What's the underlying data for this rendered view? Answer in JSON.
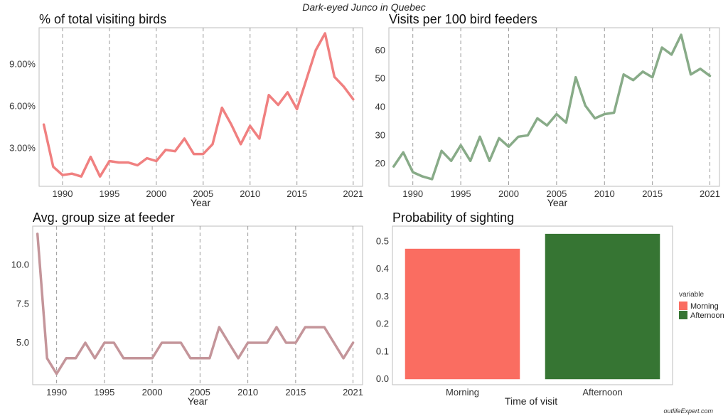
{
  "figure": {
    "title": "Dark-eyed Junco in Quebec",
    "watermark": "outlifeExpert.com"
  },
  "chart_data": [
    {
      "type": "line",
      "title": "% of total visiting birds",
      "xlabel": "Year",
      "ylabel": "",
      "color": "#f08080",
      "xlim": [
        1987.5,
        2022
      ],
      "ylim": [
        0.3,
        11.6
      ],
      "x_ticks": [
        1990,
        1995,
        2000,
        2005,
        2010,
        2015,
        2021
      ],
      "y_ticks": [
        3,
        6,
        9
      ],
      "y_tick_labels": [
        "3.00%",
        "6.00%",
        "9.00%"
      ],
      "grid": "vertical-dashed",
      "x": [
        1988,
        1989,
        1990,
        1991,
        1992,
        1993,
        1994,
        1995,
        1996,
        1997,
        1998,
        1999,
        2000,
        2001,
        2002,
        2003,
        2004,
        2005,
        2006,
        2007,
        2008,
        2009,
        2010,
        2011,
        2012,
        2013,
        2014,
        2015,
        2016,
        2017,
        2018,
        2019,
        2020,
        2021
      ],
      "values": [
        4.7,
        1.7,
        1.1,
        1.2,
        1.0,
        2.4,
        1.0,
        2.1,
        2.0,
        2.0,
        1.8,
        2.3,
        2.1,
        2.9,
        2.8,
        3.7,
        2.6,
        2.6,
        3.3,
        5.9,
        4.7,
        3.3,
        4.6,
        3.7,
        6.8,
        6.1,
        7.0,
        5.8,
        7.9,
        10.0,
        11.2,
        8.1,
        7.4,
        6.5
      ]
    },
    {
      "type": "line",
      "title": "Visits per 100 bird feeders",
      "xlabel": "Year",
      "ylabel": "",
      "color": "#88ab88",
      "xlim": [
        1987.5,
        2022
      ],
      "ylim": [
        12,
        68
      ],
      "x_ticks": [
        1990,
        1995,
        2000,
        2005,
        2010,
        2015,
        2021
      ],
      "y_ticks": [
        20,
        30,
        40,
        50,
        60
      ],
      "y_tick_labels": [
        "20",
        "30",
        "40",
        "50",
        "60"
      ],
      "grid": "vertical-dashed",
      "x": [
        1988,
        1989,
        1990,
        1991,
        1992,
        1993,
        1994,
        1995,
        1996,
        1997,
        1998,
        1999,
        2000,
        2001,
        2002,
        2003,
        2004,
        2005,
        2006,
        2007,
        2008,
        2009,
        2010,
        2011,
        2012,
        2013,
        2014,
        2015,
        2016,
        2017,
        2018,
        2019,
        2020,
        2021
      ],
      "values": [
        19,
        24,
        17,
        15.5,
        14.5,
        24.5,
        21,
        26.5,
        21,
        29.5,
        21,
        29,
        26,
        29.5,
        30,
        36,
        33.5,
        37.5,
        34.5,
        50.5,
        40.5,
        36,
        37.5,
        38,
        51.5,
        49.5,
        52.5,
        50.5,
        61,
        58.5,
        65.5,
        51.5,
        53.5,
        51
      ]
    },
    {
      "type": "line",
      "title": "Avg. group size at feeder",
      "xlabel": "Year",
      "ylabel": "",
      "color": "#c4959a",
      "xlim": [
        1987.5,
        2022
      ],
      "ylim": [
        2.3,
        12.5
      ],
      "x_ticks": [
        1990,
        1995,
        2000,
        2005,
        2010,
        2015,
        2021
      ],
      "y_ticks": [
        5,
        7.5,
        10
      ],
      "y_tick_labels": [
        "5.0",
        "7.5",
        "10.0"
      ],
      "grid": "vertical-dashed",
      "x": [
        1988,
        1989,
        1990,
        1991,
        1992,
        1993,
        1994,
        1995,
        1996,
        1997,
        1998,
        1999,
        2000,
        2001,
        2002,
        2003,
        2004,
        2005,
        2006,
        2007,
        2008,
        2009,
        2010,
        2011,
        2012,
        2013,
        2014,
        2015,
        2016,
        2017,
        2018,
        2019,
        2020,
        2021
      ],
      "values": [
        12,
        4,
        3,
        4,
        4,
        5,
        4,
        5,
        5,
        4,
        4,
        4,
        4,
        5,
        5,
        5,
        4,
        4,
        4,
        6,
        5,
        4,
        5,
        5,
        5,
        6,
        5,
        5,
        6,
        6,
        6,
        5,
        4,
        5
      ]
    },
    {
      "type": "bar",
      "title": "Probability of sighting",
      "xlabel": "Time of visit",
      "ylabel": "",
      "categories": [
        "Morning",
        "Afternoon"
      ],
      "values": [
        0.473,
        0.527
      ],
      "colors": [
        "#fa6d61",
        "#367533"
      ],
      "ylim": [
        -0.02,
        0.555
      ],
      "y_ticks": [
        0,
        0.1,
        0.2,
        0.3,
        0.4,
        0.5
      ],
      "y_tick_labels": [
        "0.0",
        "0.1",
        "0.2",
        "0.3",
        "0.4",
        "0.5"
      ],
      "grid": "none",
      "legend": {
        "title": "variable",
        "position": "right",
        "entries": [
          "Morning",
          "Afternoon"
        ]
      }
    }
  ]
}
